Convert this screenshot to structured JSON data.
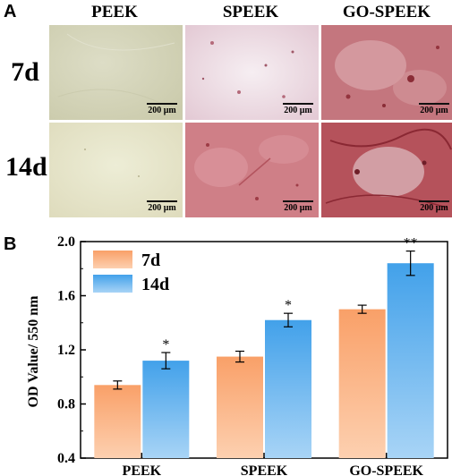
{
  "panel_a": {
    "letter": "A",
    "columns": [
      "PEEK",
      "SPEEK",
      "GO-SPEEK"
    ],
    "rows": [
      "7d",
      "14d"
    ],
    "scale_label": "200 μm",
    "tile_colors": [
      [
        "#d6d6bc",
        "#eedfe6",
        "#c77c82"
      ],
      [
        "#e8e5cc",
        "#cf7e86",
        "#b8545c"
      ]
    ]
  },
  "panel_b": {
    "letter": "B"
  },
  "chart_data": {
    "type": "bar",
    "categories": [
      "PEEK",
      "SPEEK",
      "GO-SPEEK"
    ],
    "series": [
      {
        "name": "7d",
        "values": [
          0.94,
          1.15,
          1.5
        ],
        "errors": [
          0.03,
          0.04,
          0.03
        ],
        "color": "#f9a46e"
      },
      {
        "name": "14d",
        "values": [
          1.12,
          1.42,
          1.84
        ],
        "errors": [
          0.06,
          0.05,
          0.09
        ],
        "color": "#4da6ea"
      }
    ],
    "significance": [
      [
        "",
        "*"
      ],
      [
        "",
        "*"
      ],
      [
        "",
        "**"
      ]
    ],
    "ylabel": "OD  Value/ 550 nm",
    "ylim": [
      0.4,
      2.0
    ],
    "yticks": [
      "0.4",
      "0.8",
      "1.2",
      "1.6",
      "2.0"
    ],
    "legend_position": "top-left",
    "grid": false
  }
}
